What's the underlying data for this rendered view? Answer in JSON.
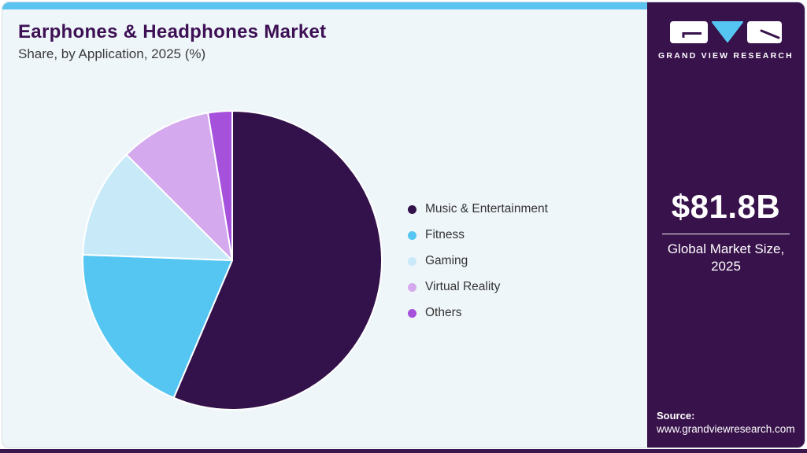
{
  "header": {
    "title": "Earphones & Headphones Market",
    "subtitle": "Share, by Application, 2025 (%)"
  },
  "chart_data": {
    "type": "pie",
    "title": "Earphones & Headphones Market Share, by Application, 2025 (%)",
    "unit": "percent",
    "direction": "clockwise",
    "start_angle_deg": 0,
    "legend_position": "right",
    "series": [
      {
        "name": "Music & Entertainment",
        "value": 56.4,
        "color": "#33114A"
      },
      {
        "name": "Fitness",
        "value": 19.2,
        "color": "#55C6F2"
      },
      {
        "name": "Gaming",
        "value": 11.9,
        "color": "#C7E9F8"
      },
      {
        "name": "Virtual Reality",
        "value": 9.9,
        "color": "#D5A9ED"
      },
      {
        "name": "Others",
        "value": 2.6,
        "color": "#A551DC"
      }
    ]
  },
  "sidebar": {
    "brand": "GRAND VIEW RESEARCH",
    "market_size_value": "$81.8B",
    "market_size_label": "Global Market Size, 2025",
    "source_label": "Source:",
    "source_url": "www.grandviewresearch.com"
  },
  "colors": {
    "accent_blue": "#5CC2EF",
    "brand_purple": "#38124B",
    "card_background": "#EFF6FA",
    "title_text": "#3D1054",
    "body_text": "#3B3B3B"
  }
}
